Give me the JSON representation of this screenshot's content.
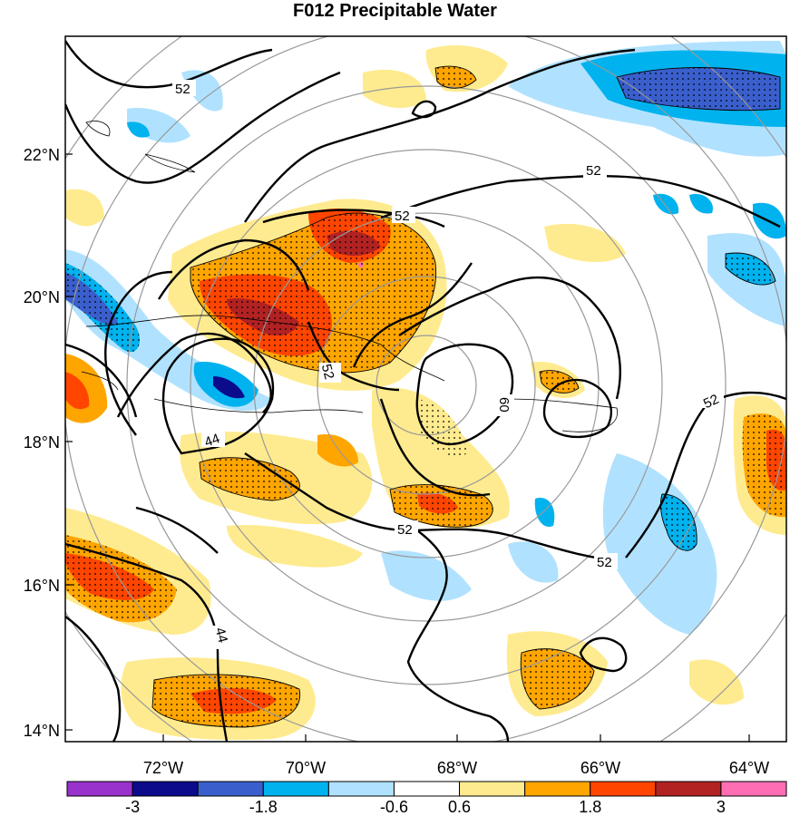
{
  "title": "F012 Precipitable Water",
  "lat_labels": [
    "22°N",
    "20°N",
    "18°N",
    "16°N",
    "14°N"
  ],
  "lon_labels": [
    "72°W",
    "70°W",
    "68°W",
    "66°W",
    "64°W"
  ],
  "contour_labels": [
    "52",
    "52",
    "52",
    "52",
    "52",
    "52",
    "52",
    "60",
    "44",
    "44"
  ],
  "colorbar": {
    "colors": [
      "#9932cc",
      "#0b0b8c",
      "#3a5fcd",
      "#00b2ee",
      "#b0e2ff",
      "#ffffff",
      "#ffeb8f",
      "#ffa500",
      "#ff4500",
      "#b22222",
      "#ff6eb4"
    ],
    "labels": [
      "-3",
      "-1.8",
      "-0.6",
      "0.6",
      "1.8",
      "3"
    ]
  }
}
